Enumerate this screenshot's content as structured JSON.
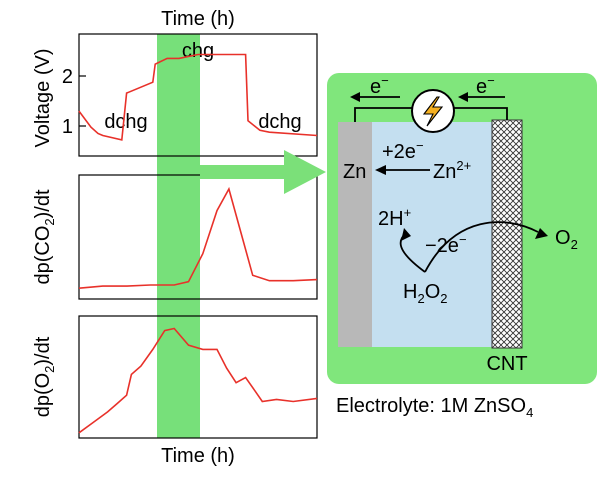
{
  "colors": {
    "curve": "#e8312a",
    "highlight": "#77e07a",
    "cell_panel": "#80e67c",
    "electrolyte": "#c4dff0",
    "zn_electrode": "#b8b8b8",
    "arrow": "#7be079",
    "bolt": "#f5b020"
  },
  "plots": {
    "top_xlabel": "Time (h)",
    "bottom_xlabel": "Time (h)",
    "voltage_ylabel": "Voltage (V)",
    "co2_ylabel_prefix": "dp(CO",
    "co2_ylabel_sub": "2",
    "co2_ylabel_suffix": ")/dt",
    "o2_ylabel_prefix": "dp(O",
    "o2_ylabel_sub": "2",
    "o2_ylabel_suffix": ")/dt",
    "voltage_ticks": [
      "1",
      "2"
    ],
    "label_dchg_left": "dchg",
    "label_chg": "chg",
    "label_dchg_right": "dchg"
  },
  "chart_data": [
    {
      "type": "line",
      "ylabel": "Voltage (V)",
      "xlabel": "Time (h)",
      "ylim": [
        0.6,
        2.5
      ],
      "x": [
        0,
        0.5,
        0.8,
        1.0,
        1.8,
        2.0,
        3.1,
        3.2,
        3.7,
        4.2,
        5.0,
        7.0,
        7.1,
        7.6,
        8.0,
        10.0
      ],
      "values": [
        1.3,
        1.05,
        0.95,
        0.92,
        0.85,
        1.58,
        1.75,
        2.03,
        2.12,
        2.12,
        2.18,
        2.18,
        1.15,
        1.0,
        0.97,
        0.92
      ]
    },
    {
      "type": "line",
      "ylabel": "dp(CO2)/dt",
      "x": [
        0,
        1.0,
        2.0,
        3.0,
        4.0,
        4.6,
        5.2,
        5.8,
        6.3,
        6.8,
        7.3,
        8.0,
        9.0,
        10.0
      ],
      "values": [
        0.0,
        0.02,
        0.02,
        0.03,
        0.03,
        0.06,
        0.32,
        0.72,
        0.92,
        0.52,
        0.12,
        0.07,
        0.07,
        0.08
      ]
    },
    {
      "type": "line",
      "ylabel": "dp(O2)/dt",
      "x": [
        0,
        0.6,
        1.2,
        1.6,
        2.0,
        2.2,
        2.6,
        3.1,
        3.6,
        4.0,
        4.6,
        5.2,
        5.8,
        6.2,
        6.6,
        7.0,
        7.4,
        7.7,
        8.3,
        9.0,
        10.0
      ],
      "values": [
        0.0,
        0.1,
        0.2,
        0.28,
        0.36,
        0.56,
        0.64,
        0.8,
        0.98,
        1.0,
        0.84,
        0.8,
        0.8,
        0.62,
        0.48,
        0.53,
        0.4,
        0.3,
        0.32,
        0.3,
        0.33
      ]
    }
  ],
  "cell": {
    "electron_left": "e",
    "electron_right": "e",
    "electron_sup": "−",
    "zn_label": "Zn",
    "zn_reaction_electrons": "+2e",
    "zn_reaction_electrons_sup": "−",
    "zn_ion_base": "Zn",
    "zn_ion_sup": "2+",
    "h_plus_base": "2H",
    "h_plus_sup": "+",
    "minus_2e": "−2e",
    "minus_2e_sup": "−",
    "o2_base": "O",
    "o2_sub": "2",
    "h2o2_h": "H",
    "h2o2_sub1": "2",
    "h2o2_o": "O",
    "h2o2_sub2": "2",
    "cnt_label": "CNT",
    "electrolyte_label": "Electrolyte: 1M ZnSO",
    "electrolyte_sub": "4"
  }
}
